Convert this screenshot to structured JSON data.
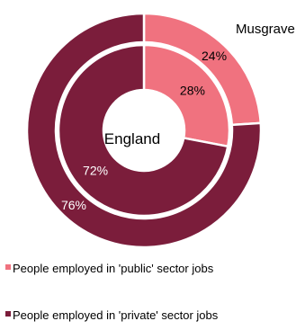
{
  "chart_data": {
    "type": "pie",
    "variant": "nested-donut",
    "legend_position": "bottom",
    "rings": [
      {
        "name": "Musgrave",
        "position": "outer",
        "values": [
          24,
          76
        ],
        "labels": [
          "24%",
          "76%"
        ]
      },
      {
        "name": "England",
        "position": "inner",
        "values": [
          28,
          72
        ],
        "labels": [
          "28%",
          "72%"
        ]
      }
    ],
    "categories": [
      "People employed in 'public' sector jobs",
      "People employed in 'private' sector jobs"
    ],
    "colors": [
      "#F0727F",
      "#7B1D3B"
    ],
    "label_colors": [
      "#000000",
      "#ffffff"
    ],
    "legend": [
      {
        "label": "People employed in 'public' sector jobs",
        "color": "#F0727F"
      },
      {
        "label": "People employed in 'private' sector jobs",
        "color": "#7B1D3B"
      }
    ]
  }
}
